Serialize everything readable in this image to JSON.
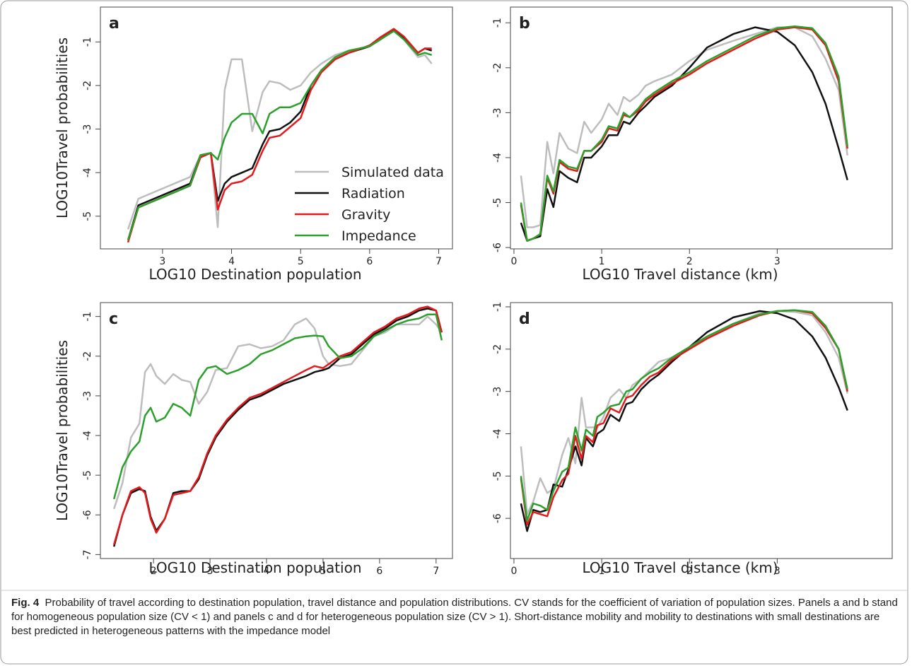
{
  "chart_data": [
    {
      "type": "line",
      "panel_label": "a",
      "xlabel": "LOG10 Destination population",
      "ylabel": "LOG10Travel probabilities",
      "xlim": [
        2.1,
        7.2
      ],
      "ylim": [
        -5.75,
        -0.2
      ],
      "xticks": [
        3,
        4,
        5,
        6,
        7
      ],
      "yticks": [
        -5,
        -4,
        -3,
        -2,
        -1
      ],
      "legend": "center right",
      "x": [
        2.5,
        2.65,
        3.4,
        3.55,
        3.7,
        3.8,
        3.9,
        4.0,
        4.15,
        4.3,
        4.45,
        4.55,
        4.7,
        4.85,
        5.0,
        5.15,
        5.3,
        5.5,
        5.7,
        6.0,
        6.15,
        6.35,
        6.5,
        6.7,
        6.8,
        6.9
      ],
      "series": [
        {
          "name": "Simulated data",
          "color": "#bdbdbd",
          "values": [
            -5.3,
            -4.6,
            -4.1,
            -3.6,
            -3.55,
            -5.25,
            -2.1,
            -1.4,
            -1.4,
            -3.05,
            -2.15,
            -1.9,
            -1.95,
            -2.1,
            -2.0,
            -1.7,
            -1.5,
            -1.3,
            -1.2,
            -1.1,
            -0.95,
            -0.72,
            -0.95,
            -1.35,
            -1.3,
            -1.5
          ]
        },
        {
          "name": "Radiation",
          "color": "#111111",
          "values": [
            -5.55,
            -4.75,
            -4.25,
            -3.6,
            -3.55,
            -4.65,
            -4.25,
            -4.1,
            -4.0,
            -3.9,
            -3.35,
            -3.05,
            -3.0,
            -2.85,
            -2.6,
            -2.0,
            -1.65,
            -1.4,
            -1.25,
            -1.1,
            -0.95,
            -0.72,
            -0.9,
            -1.25,
            -1.15,
            -1.2
          ]
        },
        {
          "name": "Gravity",
          "color": "#e41a1c",
          "values": [
            -5.6,
            -4.8,
            -4.3,
            -3.65,
            -3.55,
            -4.85,
            -4.4,
            -4.25,
            -4.2,
            -4.05,
            -3.5,
            -3.2,
            -3.15,
            -2.95,
            -2.75,
            -2.1,
            -1.7,
            -1.4,
            -1.25,
            -1.08,
            -0.9,
            -0.7,
            -0.88,
            -1.25,
            -1.15,
            -1.15
          ]
        },
        {
          "name": "Impedance",
          "color": "#2ca02c",
          "values": [
            -5.55,
            -4.8,
            -4.3,
            -3.6,
            -3.55,
            -3.7,
            -3.2,
            -2.85,
            -2.65,
            -2.65,
            -3.1,
            -2.65,
            -2.5,
            -2.5,
            -2.4,
            -2.0,
            -1.65,
            -1.35,
            -1.2,
            -1.1,
            -0.95,
            -0.75,
            -0.95,
            -1.3,
            -1.25,
            -1.3
          ]
        }
      ]
    },
    {
      "type": "line",
      "panel_label": "b",
      "xlabel": "LOG10  Travel distance (km)",
      "xlim": [
        -0.04,
        4.31
      ],
      "ylim": [
        -6.03,
        -0.65
      ],
      "xticks": [
        0,
        1,
        2,
        3
      ],
      "yticks": [
        -6,
        -5,
        -4,
        -3,
        -2,
        -1
      ],
      "x": [
        0.08,
        0.15,
        0.22,
        0.3,
        0.38,
        0.45,
        0.52,
        0.62,
        0.72,
        0.8,
        0.88,
        1.0,
        1.08,
        1.18,
        1.25,
        1.32,
        1.42,
        1.5,
        1.6,
        1.8,
        2.0,
        2.2,
        2.5,
        2.75,
        3.0,
        3.2,
        3.4,
        3.55,
        3.7,
        3.8
      ],
      "series": [
        {
          "name": "Simulated data",
          "color": "#bdbdbd",
          "values": [
            -4.4,
            -5.55,
            -5.55,
            -5.5,
            -3.65,
            -4.35,
            -3.45,
            -3.8,
            -3.9,
            -3.2,
            -3.45,
            -3.15,
            -2.8,
            -3.05,
            -2.65,
            -2.75,
            -2.6,
            -2.4,
            -2.3,
            -2.15,
            -1.85,
            -1.6,
            -1.4,
            -1.25,
            -1.1,
            -1.1,
            -1.3,
            -1.8,
            -2.5,
            -3.95
          ]
        },
        {
          "name": "Radiation",
          "color": "#111111",
          "values": [
            -5.45,
            -5.85,
            -5.8,
            -5.75,
            -4.7,
            -5.1,
            -4.3,
            -4.45,
            -4.55,
            -4.0,
            -4.0,
            -3.75,
            -3.5,
            -3.5,
            -3.2,
            -3.25,
            -3.0,
            -2.85,
            -2.65,
            -2.4,
            -2.0,
            -1.55,
            -1.25,
            -1.1,
            -1.2,
            -1.5,
            -2.1,
            -2.8,
            -3.8,
            -4.5
          ]
        },
        {
          "name": "Gravity",
          "color": "#e41a1c",
          "values": [
            -5.05,
            -5.85,
            -5.8,
            -5.7,
            -4.45,
            -4.8,
            -4.1,
            -4.25,
            -4.3,
            -3.85,
            -3.85,
            -3.65,
            -3.35,
            -3.4,
            -3.05,
            -3.1,
            -2.95,
            -2.75,
            -2.6,
            -2.35,
            -2.15,
            -1.9,
            -1.6,
            -1.35,
            -1.15,
            -1.1,
            -1.15,
            -1.5,
            -2.3,
            -3.8
          ]
        },
        {
          "name": "Impedance",
          "color": "#2ca02c",
          "values": [
            -5.0,
            -5.85,
            -5.8,
            -5.7,
            -4.4,
            -4.75,
            -4.05,
            -4.2,
            -4.25,
            -3.85,
            -3.85,
            -3.6,
            -3.3,
            -3.35,
            -3.0,
            -3.1,
            -2.9,
            -2.7,
            -2.55,
            -2.3,
            -2.1,
            -1.85,
            -1.55,
            -1.3,
            -1.12,
            -1.08,
            -1.12,
            -1.45,
            -2.2,
            -3.75
          ]
        }
      ]
    },
    {
      "type": "line",
      "panel_label": "c",
      "xlabel": "LOG10 Destination population",
      "ylabel": "LOG10Travel probabilities",
      "xlim": [
        1.06,
        7.29
      ],
      "ylim": [
        -7.1,
        -0.65
      ],
      "xticks": [
        2,
        3,
        4,
        5,
        6,
        7
      ],
      "yticks": [
        -7,
        -6,
        -5,
        -4,
        -3,
        -2,
        -1
      ],
      "x": [
        1.3,
        1.45,
        1.6,
        1.75,
        1.85,
        1.95,
        2.05,
        2.2,
        2.35,
        2.5,
        2.65,
        2.8,
        2.95,
        3.1,
        3.3,
        3.5,
        3.7,
        3.9,
        4.1,
        4.3,
        4.5,
        4.7,
        4.85,
        5.0,
        5.1,
        5.3,
        5.5,
        5.7,
        5.9,
        6.1,
        6.3,
        6.5,
        6.7,
        6.85,
        7.0,
        7.1
      ],
      "series": [
        {
          "name": "Simulated data",
          "color": "#bdbdbd",
          "values": [
            -5.85,
            -5.2,
            -4.05,
            -3.7,
            -2.4,
            -2.2,
            -2.5,
            -2.7,
            -2.45,
            -2.6,
            -2.65,
            -3.2,
            -2.9,
            -2.35,
            -2.3,
            -1.75,
            -1.7,
            -1.8,
            -1.75,
            -1.6,
            -1.2,
            -1.05,
            -1.3,
            -2.0,
            -2.2,
            -2.25,
            -2.2,
            -1.85,
            -1.5,
            -1.4,
            -1.2,
            -1.2,
            -1.2,
            -1.0,
            -1.2,
            -1.4
          ]
        },
        {
          "name": "Radiation",
          "color": "#111111",
          "values": [
            -6.8,
            -6.0,
            -5.45,
            -5.35,
            -5.4,
            -6.05,
            -6.4,
            -6.1,
            -5.45,
            -5.4,
            -5.4,
            -5.1,
            -4.5,
            -4.05,
            -3.65,
            -3.35,
            -3.1,
            -3.0,
            -2.85,
            -2.7,
            -2.6,
            -2.5,
            -2.4,
            -2.35,
            -2.3,
            -2.05,
            -1.95,
            -1.7,
            -1.45,
            -1.3,
            -1.1,
            -1.0,
            -0.85,
            -0.8,
            -0.85,
            -1.4
          ]
        },
        {
          "name": "Gravity",
          "color": "#e41a1c",
          "values": [
            -6.75,
            -6.0,
            -5.4,
            -5.3,
            -5.45,
            -6.1,
            -6.45,
            -6.1,
            -5.5,
            -5.45,
            -5.4,
            -5.05,
            -4.45,
            -4.0,
            -3.6,
            -3.3,
            -3.05,
            -2.95,
            -2.8,
            -2.65,
            -2.5,
            -2.35,
            -2.25,
            -2.3,
            -2.2,
            -2.0,
            -1.9,
            -1.65,
            -1.4,
            -1.25,
            -1.05,
            -0.95,
            -0.8,
            -0.75,
            -0.85,
            -1.4
          ]
        },
        {
          "name": "Impedance",
          "color": "#2ca02c",
          "values": [
            -5.6,
            -4.8,
            -4.4,
            -4.15,
            -3.5,
            -3.3,
            -3.65,
            -3.55,
            -3.2,
            -3.3,
            -3.5,
            -2.6,
            -2.3,
            -2.25,
            -2.45,
            -2.35,
            -2.2,
            -1.95,
            -1.85,
            -1.7,
            -1.55,
            -1.5,
            -1.48,
            -1.5,
            -1.75,
            -2.05,
            -2.0,
            -1.8,
            -1.5,
            -1.35,
            -1.2,
            -1.1,
            -1.05,
            -0.95,
            -0.95,
            -1.6
          ]
        }
      ]
    },
    {
      "type": "line",
      "panel_label": "d",
      "xlabel": "LOG10  Travel distance (km)",
      "xlim": [
        -0.04,
        4.31
      ],
      "ylim": [
        -6.95,
        -0.9
      ],
      "xticks": [
        0,
        1,
        2,
        3
      ],
      "yticks": [
        -6,
        -5,
        -4,
        -3,
        -2,
        -1
      ],
      "x": [
        0.08,
        0.15,
        0.22,
        0.3,
        0.38,
        0.45,
        0.55,
        0.62,
        0.7,
        0.77,
        0.82,
        0.9,
        0.95,
        1.02,
        1.1,
        1.2,
        1.28,
        1.35,
        1.45,
        1.55,
        1.65,
        1.8,
        2.0,
        2.2,
        2.5,
        2.8,
        3.0,
        3.2,
        3.4,
        3.55,
        3.7,
        3.8
      ],
      "series": [
        {
          "name": "Simulated data",
          "color": "#bdbdbd",
          "values": [
            -4.3,
            -5.9,
            -5.6,
            -5.05,
            -5.4,
            -5.3,
            -4.5,
            -4.1,
            -4.7,
            -3.15,
            -3.85,
            -3.85,
            -3.85,
            -3.6,
            -3.15,
            -2.95,
            -3.15,
            -2.85,
            -2.7,
            -2.5,
            -2.3,
            -2.2,
            -1.95,
            -1.75,
            -1.4,
            -1.15,
            -1.1,
            -1.12,
            -1.2,
            -1.6,
            -2.2,
            -3.05
          ]
        },
        {
          "name": "Radiation",
          "color": "#111111",
          "values": [
            -5.65,
            -6.3,
            -5.8,
            -5.85,
            -5.8,
            -5.2,
            -5.25,
            -4.85,
            -4.3,
            -4.75,
            -4.1,
            -4.3,
            -4.0,
            -3.9,
            -3.55,
            -3.7,
            -3.3,
            -3.25,
            -2.95,
            -2.75,
            -2.6,
            -2.3,
            -1.95,
            -1.6,
            -1.25,
            -1.1,
            -1.15,
            -1.3,
            -1.7,
            -2.2,
            -2.9,
            -3.45
          ]
        },
        {
          "name": "Gravity",
          "color": "#e41a1c",
          "values": [
            -5.05,
            -6.15,
            -5.85,
            -5.9,
            -5.95,
            -5.5,
            -5.1,
            -4.95,
            -4.05,
            -4.6,
            -4.05,
            -4.2,
            -3.8,
            -3.75,
            -3.4,
            -3.5,
            -3.15,
            -3.1,
            -2.85,
            -2.65,
            -2.55,
            -2.25,
            -2.0,
            -1.75,
            -1.45,
            -1.2,
            -1.1,
            -1.08,
            -1.15,
            -1.5,
            -2.0,
            -3.0
          ]
        },
        {
          "name": "Impedance",
          "color": "#2ca02c",
          "values": [
            -5.0,
            -6.05,
            -5.65,
            -5.7,
            -5.8,
            -5.35,
            -4.9,
            -4.8,
            -3.85,
            -4.4,
            -3.9,
            -4.05,
            -3.6,
            -3.5,
            -3.35,
            -3.3,
            -3.0,
            -2.95,
            -2.7,
            -2.55,
            -2.45,
            -2.2,
            -1.95,
            -1.7,
            -1.4,
            -1.18,
            -1.1,
            -1.08,
            -1.12,
            -1.45,
            -2.0,
            -2.95
          ]
        }
      ]
    }
  ],
  "caption": {
    "label": "Fig. 4",
    "text": "Probability of travel according to destination population, travel distance and population distributions. CV stands for the coefficient of variation of population sizes. Panels a and b stand for homogeneous population size (CV < 1) and panels c and d for heterogeneous population size (CV > 1). Short-distance mobility and mobility to destinations with small destinations are best predicted in heterogeneous patterns with the impedance model"
  }
}
